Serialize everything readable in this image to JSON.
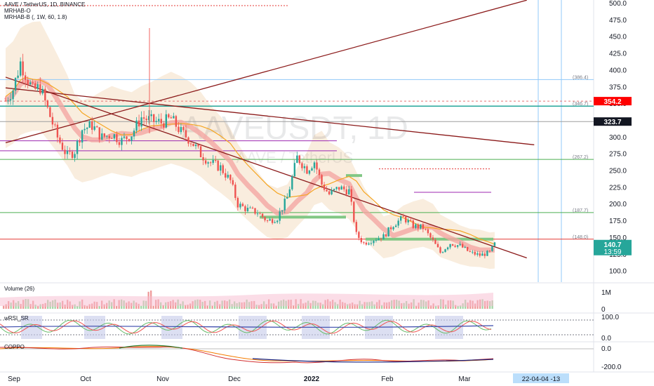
{
  "header": {
    "symbol_line": "AAVE / TetherUS, 1D, BINANCE",
    "indicator_1": "MRHAB-O",
    "indicator_2": "MRHAB-B (, 1W, 60, 1.8)"
  },
  "watermark": {
    "symbol": "AAVEUSDT, 1D",
    "name": "AAVE / TetherUS"
  },
  "colors": {
    "up": "#26a69a",
    "down": "#ef5350",
    "trendline": "#8b1a1a",
    "band": "#f7e7d3",
    "ribbon_red": "#f4a6a3",
    "ribbon_blue": "#4a90d9",
    "green_level": "#4caf50",
    "purple_level": "#9c27b0",
    "orange_ma": "#f5a623",
    "price_badge": "#26a69a",
    "red_badge": "#ff0000",
    "dark_badge": "#131722",
    "date_badge": "#bbdefb"
  },
  "price_axis": {
    "ticks": [
      "500.0",
      "475.0",
      "450.0",
      "425.0",
      "400.0",
      "375.0",
      "350.0",
      "325.0",
      "300.0",
      "275.0",
      "250.0",
      "225.0",
      "200.0",
      "175.0",
      "150.0",
      "125.0",
      "100.0"
    ]
  },
  "labels": {
    "last_price": "140.7",
    "countdown": "13:59",
    "red_level": "354.2",
    "dark_level": "323.7",
    "level_386": "(386.4)",
    "level_346": "(346.7)",
    "level_267": "(267.2)",
    "level_187": "(187.7)",
    "level_148": "(148.0)"
  },
  "volume_pane": {
    "title": "Volume (26)",
    "ticks": [
      "1M",
      "0"
    ]
  },
  "rsi_pane": {
    "title": "wRSI_SR",
    "ticks": [
      "100.0",
      "0.0"
    ]
  },
  "copp_pane": {
    "title": "COPPO",
    "ticks": [
      "0.0",
      "-200.0"
    ]
  },
  "time_axis": {
    "labels": [
      "Sep",
      "Oct",
      "Nov",
      "Dec",
      "2022",
      "Feb",
      "Mar"
    ],
    "cursor_label": "22-04-04 -13"
  },
  "chart_data": {
    "type": "candlestick",
    "title": "AAVE / TetherUS, 1D, BINANCE",
    "x_start": "2021-09-01",
    "ylim": [
      85,
      505
    ],
    "y_ticks": [
      100,
      125,
      150,
      175,
      200,
      225,
      250,
      275,
      300,
      325,
      350,
      375,
      400,
      425,
      450,
      475,
      500
    ],
    "last_price": 140.7,
    "horizontal_levels": [
      {
        "value": 386.4,
        "label": "(386.4)"
      },
      {
        "value": 354.2,
        "label": "354.2"
      },
      {
        "value": 346.7,
        "label": "(346.7)"
      },
      {
        "value": 323.7,
        "label": "323.7"
      },
      {
        "value": 267.2,
        "label": "(267.2)"
      },
      {
        "value": 187.7,
        "label": "(187.7)"
      },
      {
        "value": 148.0,
        "label": "(148.0)"
      }
    ],
    "trendlines": [
      {
        "from": [
          "2021-09-01",
          292
        ],
        "to": [
          "2022-03-31",
          505
        ]
      },
      {
        "from": [
          "2021-09-01",
          390
        ],
        "to": [
          "2022-03-31",
          120
        ]
      },
      {
        "from": [
          "2021-09-01",
          374
        ],
        "to": [
          "2022-04-03",
          289
        ]
      }
    ],
    "close": [
      {
        "date": "2021-09-01",
        "value": 355
      },
      {
        "date": "2021-09-04",
        "value": 372
      },
      {
        "date": "2021-09-07",
        "value": 412
      },
      {
        "date": "2021-09-09",
        "value": 395
      },
      {
        "date": "2021-09-12",
        "value": 370
      },
      {
        "date": "2021-09-15",
        "value": 375
      },
      {
        "date": "2021-09-18",
        "value": 342
      },
      {
        "date": "2021-09-22",
        "value": 300
      },
      {
        "date": "2021-09-26",
        "value": 272
      },
      {
        "date": "2021-09-29",
        "value": 280
      },
      {
        "date": "2021-10-02",
        "value": 312
      },
      {
        "date": "2021-10-06",
        "value": 318
      },
      {
        "date": "2021-10-10",
        "value": 300
      },
      {
        "date": "2021-10-14",
        "value": 305
      },
      {
        "date": "2021-10-18",
        "value": 295
      },
      {
        "date": "2021-10-22",
        "value": 305
      },
      {
        "date": "2021-10-26",
        "value": 330
      },
      {
        "date": "2021-10-30",
        "value": 325
      },
      {
        "date": "2021-11-03",
        "value": 322
      },
      {
        "date": "2021-11-07",
        "value": 328
      },
      {
        "date": "2021-11-11",
        "value": 308
      },
      {
        "date": "2021-11-15",
        "value": 295
      },
      {
        "date": "2021-11-19",
        "value": 275
      },
      {
        "date": "2021-11-23",
        "value": 262
      },
      {
        "date": "2021-11-27",
        "value": 255
      },
      {
        "date": "2021-12-01",
        "value": 235
      },
      {
        "date": "2021-12-04",
        "value": 200
      },
      {
        "date": "2021-12-08",
        "value": 192
      },
      {
        "date": "2021-12-12",
        "value": 188
      },
      {
        "date": "2021-12-16",
        "value": 175
      },
      {
        "date": "2021-12-20",
        "value": 180
      },
      {
        "date": "2021-12-24",
        "value": 210
      },
      {
        "date": "2021-12-28",
        "value": 270
      },
      {
        "date": "2022-01-01",
        "value": 252
      },
      {
        "date": "2022-01-04",
        "value": 264
      },
      {
        "date": "2022-01-07",
        "value": 230
      },
      {
        "date": "2022-01-10",
        "value": 215
      },
      {
        "date": "2022-01-14",
        "value": 225
      },
      {
        "date": "2022-01-18",
        "value": 220
      },
      {
        "date": "2022-01-21",
        "value": 155
      },
      {
        "date": "2022-01-24",
        "value": 142
      },
      {
        "date": "2022-01-28",
        "value": 148
      },
      {
        "date": "2022-02-01",
        "value": 152
      },
      {
        "date": "2022-02-05",
        "value": 170
      },
      {
        "date": "2022-02-09",
        "value": 180
      },
      {
        "date": "2022-02-13",
        "value": 168
      },
      {
        "date": "2022-02-17",
        "value": 165
      },
      {
        "date": "2022-02-21",
        "value": 145
      },
      {
        "date": "2022-02-24",
        "value": 128
      },
      {
        "date": "2022-02-28",
        "value": 142
      },
      {
        "date": "2022-03-04",
        "value": 138
      },
      {
        "date": "2022-03-08",
        "value": 128
      },
      {
        "date": "2022-03-12",
        "value": 124
      },
      {
        "date": "2022-03-16",
        "value": 128
      },
      {
        "date": "2022-03-18",
        "value": 140.7
      }
    ]
  }
}
